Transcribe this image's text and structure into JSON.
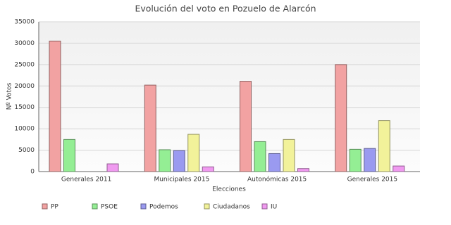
{
  "chart_data": {
    "type": "bar",
    "title": "Evolución del voto en Pozuelo de Alarcón",
    "x_label": "Elecciones",
    "y_label": "Nº Votos",
    "categories": [
      "Generales 2011",
      "Municipales 2015",
      "Autonómicas 2015",
      "Generales 2015"
    ],
    "series": [
      {
        "name": "PP",
        "color": "#f2a2a2",
        "values": [
          30500,
          20200,
          21100,
          25000
        ]
      },
      {
        "name": "PSOE",
        "color": "#94ee94",
        "values": [
          7500,
          5100,
          7000,
          5200
        ]
      },
      {
        "name": "Podemos",
        "color": "#9a9af0",
        "values": [
          null,
          4900,
          4200,
          5400
        ]
      },
      {
        "name": "Ciudadanos",
        "color": "#f2f29a",
        "values": [
          null,
          8700,
          7500,
          11900
        ]
      },
      {
        "name": "IU",
        "color": "#f09af0",
        "values": [
          1800,
          1100,
          700,
          1300
        ]
      }
    ],
    "ylim": [
      0,
      35000
    ],
    "yticks": [
      0,
      5000,
      10000,
      15000,
      20000,
      25000,
      30000,
      35000
    ],
    "grid": true
  }
}
